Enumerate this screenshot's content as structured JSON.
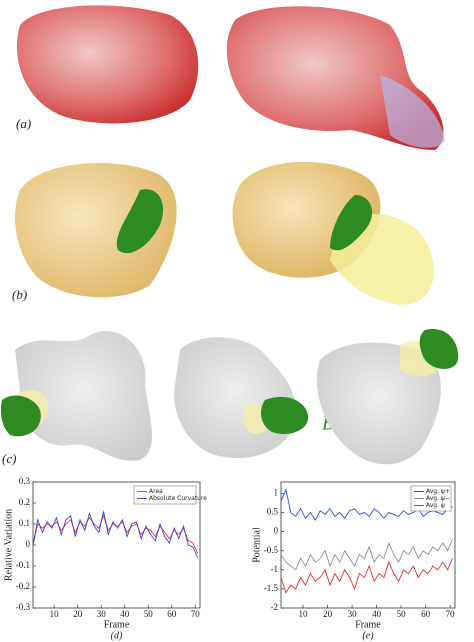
{
  "panel_labels": [
    "(a)",
    "(b)",
    "(c)"
  ],
  "annotation": "B",
  "chart_data": [
    {
      "type": "line",
      "caption": "(d)",
      "xlabel": "Frame",
      "ylabel": "Relative Variation",
      "x": [
        1,
        3,
        5,
        7,
        9,
        11,
        13,
        15,
        17,
        19,
        21,
        23,
        25,
        27,
        29,
        31,
        33,
        35,
        37,
        39,
        41,
        43,
        45,
        47,
        49,
        51,
        53,
        55,
        57,
        59,
        61,
        63,
        65,
        67,
        69,
        71
      ],
      "series": [
        {
          "name": "Area",
          "color": "#e04040",
          "values": [
            0,
            0.1,
            0.08,
            0.1,
            0.09,
            0.11,
            0.07,
            0.1,
            0.12,
            0.06,
            0.11,
            0.09,
            0.13,
            0.1,
            0.08,
            0.14,
            0.07,
            0.1,
            0.09,
            0.11,
            0.06,
            0.09,
            0.1,
            0.05,
            0.08,
            0.07,
            0.04,
            0.09,
            0.06,
            0.03,
            0.07,
            0.05,
            0.08,
            0.02,
            0.01,
            -0.04
          ]
        },
        {
          "name": "Absolute Curvature",
          "color": "#4040d0",
          "values": [
            0,
            0.12,
            0.06,
            0.11,
            0.08,
            0.13,
            0.05,
            0.12,
            0.14,
            0.04,
            0.12,
            0.07,
            0.15,
            0.09,
            0.06,
            0.16,
            0.05,
            0.11,
            0.08,
            0.12,
            0.04,
            0.1,
            0.11,
            0.03,
            0.09,
            0.05,
            0.02,
            0.1,
            0.04,
            0.01,
            0.08,
            0.03,
            0.09,
            0.0,
            -0.01,
            -0.06
          ]
        }
      ],
      "xlim": [
        1,
        72
      ],
      "xticks": [
        10,
        20,
        30,
        40,
        50,
        60,
        70
      ],
      "ylim": [
        -0.3,
        0.3
      ],
      "yticks": [
        -0.3,
        -0.2,
        -0.1,
        0,
        0.1,
        0.2,
        0.3
      ],
      "legend": "top-right"
    },
    {
      "type": "line",
      "caption": "(e)",
      "xlabel": "Frame",
      "ylabel": "Potential",
      "x": [
        1,
        3,
        5,
        7,
        9,
        11,
        13,
        15,
        17,
        19,
        21,
        23,
        25,
        27,
        29,
        31,
        33,
        35,
        37,
        39,
        41,
        43,
        45,
        47,
        49,
        51,
        53,
        55,
        57,
        59,
        61,
        63,
        65,
        67,
        69,
        71
      ],
      "series": [
        {
          "name": "Avg. ψ+",
          "color": "#3050e0",
          "values": [
            0.8,
            1.1,
            0.5,
            0.4,
            0.6,
            0.35,
            0.5,
            0.3,
            0.55,
            0.45,
            0.6,
            0.4,
            0.5,
            0.35,
            0.55,
            0.6,
            0.45,
            0.5,
            0.4,
            0.6,
            0.5,
            0.35,
            0.5,
            0.45,
            0.4,
            0.55,
            0.45,
            0.5,
            0.6,
            0.4,
            0.5,
            0.55,
            0.5,
            0.45,
            0.6,
            0.65
          ]
        },
        {
          "name": "Avg. ψ−",
          "color": "#909090",
          "values": [
            -0.6,
            -0.8,
            -0.9,
            -1.0,
            -0.7,
            -0.9,
            -0.6,
            -0.8,
            -0.7,
            -0.5,
            -0.9,
            -0.6,
            -0.8,
            -0.5,
            -0.7,
            -0.9,
            -0.6,
            -0.7,
            -0.4,
            -0.8,
            -0.6,
            -0.7,
            -0.3,
            -0.6,
            -0.8,
            -0.5,
            -0.6,
            -0.4,
            -0.7,
            -0.5,
            -0.6,
            -0.4,
            -0.5,
            -0.3,
            -0.5,
            -0.2
          ]
        },
        {
          "name": "Avg. ψ",
          "color": "#e03030",
          "values": [
            -1.2,
            -1.6,
            -1.4,
            -1.5,
            -1.2,
            -1.4,
            -1.1,
            -1.3,
            -1.2,
            -1.0,
            -1.4,
            -1.1,
            -1.3,
            -1.0,
            -1.2,
            -1.5,
            -1.1,
            -1.2,
            -0.9,
            -1.3,
            -1.1,
            -1.2,
            -0.8,
            -1.1,
            -1.3,
            -1.0,
            -1.1,
            -0.9,
            -1.2,
            -1.0,
            -1.1,
            -0.9,
            -1.0,
            -0.8,
            -1.0,
            -0.7
          ]
        }
      ],
      "xlim": [
        1,
        72
      ],
      "xticks": [
        10,
        20,
        30,
        40,
        50,
        60,
        70
      ],
      "ylim": [
        -2,
        1.3
      ],
      "yticks": [
        -2,
        -1.5,
        -1,
        -0.5,
        0,
        0.5,
        1
      ],
      "legend": "top-right"
    }
  ]
}
